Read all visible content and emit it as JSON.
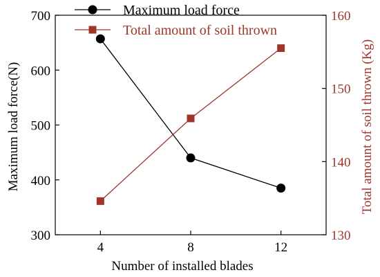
{
  "chart_data": {
    "type": "line",
    "xlabel": "Number of installed blades",
    "ylabel_left": "Maximum load force(N)",
    "ylabel_right": "Total amount of soil thrown (Kg)",
    "x": [
      4,
      8,
      12
    ],
    "x_ticks": [
      "4",
      "8",
      "12"
    ],
    "ylim_left": [
      300,
      700
    ],
    "yticks_left": [
      "300",
      "400",
      "500",
      "600",
      "700"
    ],
    "ylim_right": [
      130,
      160
    ],
    "yticks_right": [
      "130",
      "140",
      "150",
      "160"
    ],
    "grid": false,
    "legend_position": "top-left",
    "series": [
      {
        "name": "Maximum load force",
        "axis": "left",
        "values": [
          657,
          440,
          385
        ],
        "color": "#000000",
        "marker": "circle"
      },
      {
        "name": "Total amount of soil thrown",
        "axis": "right",
        "values": [
          134.6,
          145.9,
          155.5
        ],
        "color": "#a0352b",
        "marker": "square"
      }
    ]
  }
}
